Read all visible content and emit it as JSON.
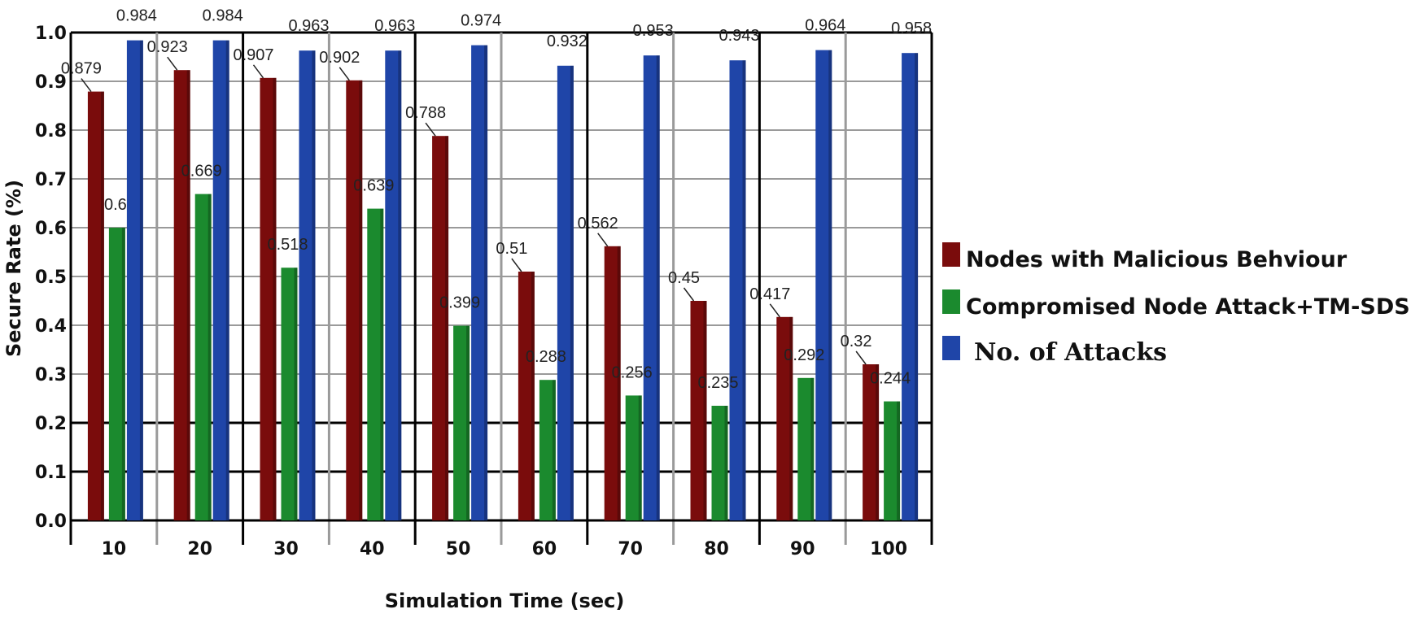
{
  "chart_data": {
    "type": "bar",
    "title": "",
    "xlabel": "Simulation Time (sec)",
    "ylabel": "Secure Rate (%)",
    "ylim": [
      0,
      1.0
    ],
    "yticks": [
      "0.0",
      "0.1",
      "0.2",
      "0.3",
      "0.4",
      "0.5",
      "0.6",
      "0.7",
      "0.8",
      "0.9",
      "1.0"
    ],
    "categories": [
      "10",
      "20",
      "30",
      "40",
      "50",
      "60",
      "70",
      "80",
      "90",
      "100"
    ],
    "series": [
      {
        "name": "Nodes with Malicious Behviour",
        "color": "#7a0c0c",
        "values": [
          0.879,
          0.923,
          0.907,
          0.902,
          0.788,
          0.51,
          0.562,
          0.45,
          0.417,
          0.32
        ],
        "labels": [
          "0.879",
          "0.923",
          "0.907",
          "0.902",
          "0.788",
          "0.51",
          "0.562",
          "0.45",
          "0.417",
          "0.32"
        ]
      },
      {
        "name": "Compromised Node Attack+TM-SDS",
        "color": "#1b8a2e",
        "values": [
          0.6,
          0.669,
          0.518,
          0.639,
          0.399,
          0.288,
          0.256,
          0.235,
          0.292,
          0.244
        ],
        "labels": [
          "0.6",
          "0.669",
          "0.518",
          "0.639",
          "0.399",
          "0.288",
          "0.256",
          "0.235",
          "0.292",
          "0.244"
        ]
      },
      {
        "name": "No. of Attacks",
        "color": "#1f45a8",
        "values": [
          0.984,
          0.984,
          0.963,
          0.963,
          0.974,
          0.932,
          0.953,
          0.943,
          0.964,
          0.958
        ],
        "labels": [
          "0.984",
          "0.984",
          "0.963",
          "0.963",
          "0.974",
          "0.932",
          "0.953",
          "0.943",
          "0.964",
          "0.958"
        ]
      }
    ],
    "legend_position": "right"
  }
}
